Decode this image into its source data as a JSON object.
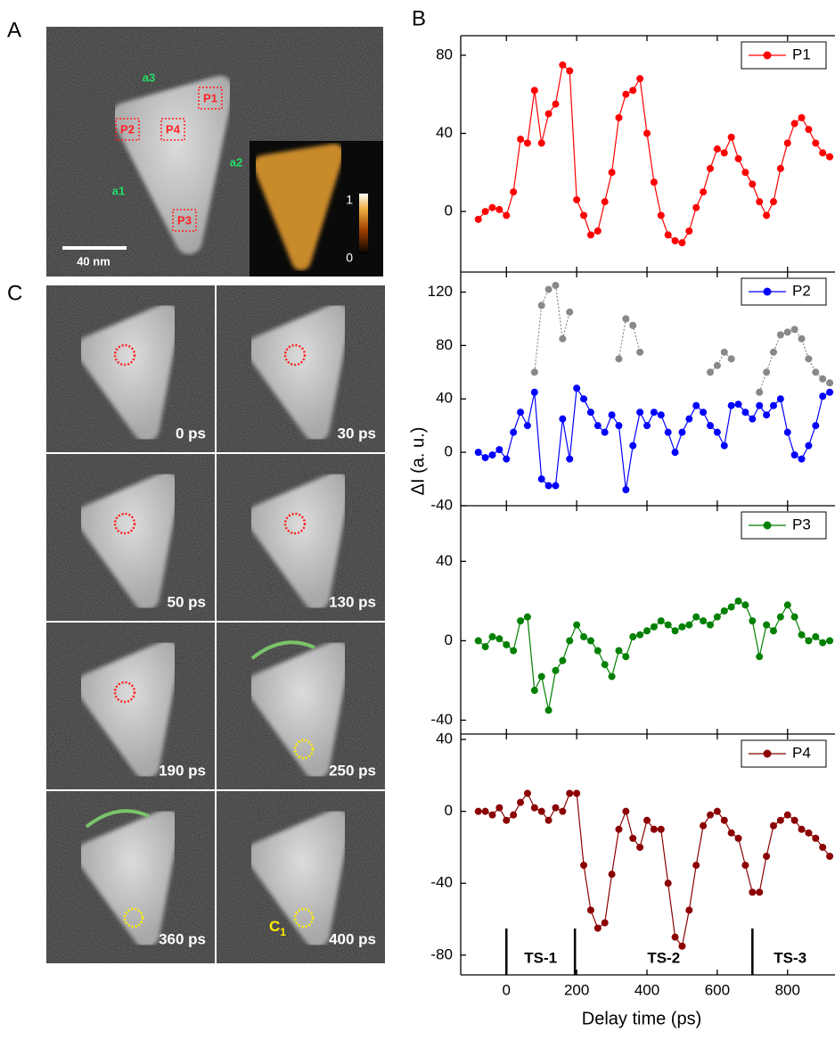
{
  "panels": {
    "a": "A",
    "b": "B",
    "c": "C"
  },
  "image_a": {
    "edges": [
      "a3",
      "a2",
      "a1"
    ],
    "regions": [
      "P1",
      "P2",
      "P4",
      "P3"
    ],
    "scale_bar": "40 nm",
    "colorbar_ticks": [
      1,
      0
    ]
  },
  "image_c": {
    "frames": [
      "0 ps",
      "30 ps",
      "50 ps",
      "130 ps",
      "190 ps",
      "250 ps",
      "360 ps",
      "400 ps"
    ],
    "marker": "C",
    "marker_sub": "1"
  },
  "chart_data": [
    {
      "type": "line",
      "xlim": [
        -130,
        935
      ],
      "ylim": [
        -31,
        90
      ],
      "yticks": [
        0,
        40,
        80
      ],
      "x": [
        -80,
        -60,
        -40,
        -20,
        0,
        20,
        40,
        60,
        80,
        100,
        120,
        140,
        160,
        180,
        200,
        220,
        240,
        260,
        280,
        300,
        320,
        340,
        360,
        380,
        400,
        420,
        440,
        460,
        480,
        500,
        520,
        540,
        560,
        580,
        600,
        620,
        640,
        660,
        680,
        700,
        720,
        740,
        760,
        780,
        800,
        820,
        840,
        860,
        880,
        900,
        920
      ],
      "series": [
        {
          "name": "P1",
          "color": "#ff0000",
          "values": [
            -4,
            0,
            2,
            1,
            -2,
            10,
            37,
            35,
            62,
            35,
            50,
            55,
            75,
            72,
            6,
            -2,
            -12,
            -10,
            5,
            20,
            48,
            60,
            62,
            68,
            40,
            15,
            -2,
            -12,
            -15,
            -16,
            -10,
            2,
            10,
            22,
            32,
            30,
            38,
            27,
            20,
            14,
            5,
            -2,
            5,
            22,
            35,
            45,
            48,
            42,
            35,
            30,
            28
          ]
        }
      ]
    },
    {
      "type": "line",
      "xlim": [
        -130,
        935
      ],
      "ylim": [
        -40,
        135
      ],
      "yticks": [
        -40,
        0,
        40,
        80,
        120
      ],
      "ylabel": "ΔI (a. u.)",
      "x": [
        -80,
        -60,
        -40,
        -20,
        0,
        20,
        40,
        60,
        80,
        100,
        120,
        140,
        160,
        180,
        200,
        220,
        240,
        260,
        280,
        300,
        320,
        340,
        360,
        380,
        400,
        420,
        440,
        460,
        480,
        500,
        520,
        540,
        560,
        580,
        600,
        620,
        640,
        660,
        680,
        700,
        720,
        740,
        760,
        780,
        800,
        820,
        840,
        860,
        880,
        900,
        920
      ],
      "series": [
        {
          "color": "#888888",
          "line_style": "dotted",
          "values": [
            null,
            null,
            null,
            null,
            null,
            null,
            null,
            null,
            60,
            110,
            122,
            125,
            85,
            105,
            null,
            null,
            null,
            null,
            null,
            null,
            70,
            100,
            95,
            75,
            null,
            null,
            null,
            null,
            null,
            null,
            null,
            null,
            null,
            60,
            65,
            75,
            70,
            null,
            null,
            null,
            45,
            60,
            75,
            88,
            90,
            92,
            85,
            70,
            60,
            55,
            52
          ]
        },
        {
          "name": "P2",
          "color": "#0000ff",
          "values": [
            0,
            -4,
            -2,
            2,
            -5,
            15,
            30,
            20,
            45,
            -20,
            -25,
            -25,
            25,
            -5,
            48,
            40,
            30,
            20,
            15,
            28,
            20,
            -28,
            5,
            30,
            20,
            30,
            28,
            15,
            0,
            15,
            25,
            35,
            30,
            20,
            15,
            5,
            35,
            36,
            30,
            25,
            35,
            28,
            35,
            40,
            15,
            -2,
            -5,
            5,
            20,
            42,
            45
          ]
        }
      ]
    },
    {
      "type": "line",
      "xlim": [
        -130,
        935
      ],
      "ylim": [
        -47,
        68
      ],
      "yticks": [
        -40,
        0,
        40
      ],
      "x": [
        -80,
        -60,
        -40,
        -20,
        0,
        20,
        40,
        60,
        80,
        100,
        120,
        140,
        160,
        180,
        200,
        220,
        240,
        260,
        280,
        300,
        320,
        340,
        360,
        380,
        400,
        420,
        440,
        460,
        480,
        500,
        520,
        540,
        560,
        580,
        600,
        620,
        640,
        660,
        680,
        700,
        720,
        740,
        760,
        780,
        800,
        820,
        840,
        860,
        880,
        900,
        920
      ],
      "series": [
        {
          "name": "P3",
          "color": "#008000",
          "values": [
            0,
            -3,
            2,
            1,
            -2,
            -5,
            10,
            12,
            -25,
            -18,
            -35,
            -15,
            -10,
            0,
            8,
            2,
            0,
            -5,
            -12,
            -18,
            -5,
            -8,
            2,
            3,
            5,
            7,
            10,
            8,
            5,
            7,
            8,
            12,
            10,
            8,
            12,
            15,
            17,
            20,
            18,
            10,
            -8,
            8,
            5,
            12,
            18,
            12,
            3,
            0,
            2,
            -1,
            0
          ]
        }
      ]
    },
    {
      "type": "line",
      "xlim": [
        -130,
        935
      ],
      "ylim": [
        -91,
        43
      ],
      "yticks": [
        -80,
        -40,
        0,
        40
      ],
      "xticks": [
        0,
        200,
        400,
        600,
        800
      ],
      "xlabel": "Delay time (ps)",
      "boundaries": [
        0,
        195,
        700
      ],
      "phases": [
        "TS-1",
        "TS-2",
        "TS-3"
      ],
      "x": [
        -80,
        -60,
        -40,
        -20,
        0,
        20,
        40,
        60,
        80,
        100,
        120,
        140,
        160,
        180,
        200,
        220,
        240,
        260,
        280,
        300,
        320,
        340,
        360,
        380,
        400,
        420,
        440,
        460,
        480,
        500,
        520,
        540,
        560,
        580,
        600,
        620,
        640,
        660,
        680,
        700,
        720,
        740,
        760,
        780,
        800,
        820,
        840,
        860,
        880,
        900,
        920
      ],
      "series": [
        {
          "name": "P4",
          "color": "#8b0000",
          "values": [
            0,
            0,
            -2,
            2,
            -5,
            -2,
            5,
            10,
            2,
            0,
            -5,
            2,
            0,
            10,
            10,
            -30,
            -55,
            -65,
            -62,
            -35,
            -10,
            0,
            -15,
            -20,
            -5,
            -10,
            -10,
            -40,
            -70,
            -75,
            -55,
            -30,
            -8,
            -2,
            0,
            -5,
            -12,
            -15,
            -30,
            -45,
            -45,
            -25,
            -8,
            -5,
            -2,
            -5,
            -10,
            -12,
            -15,
            -20,
            -25
          ]
        }
      ]
    }
  ]
}
